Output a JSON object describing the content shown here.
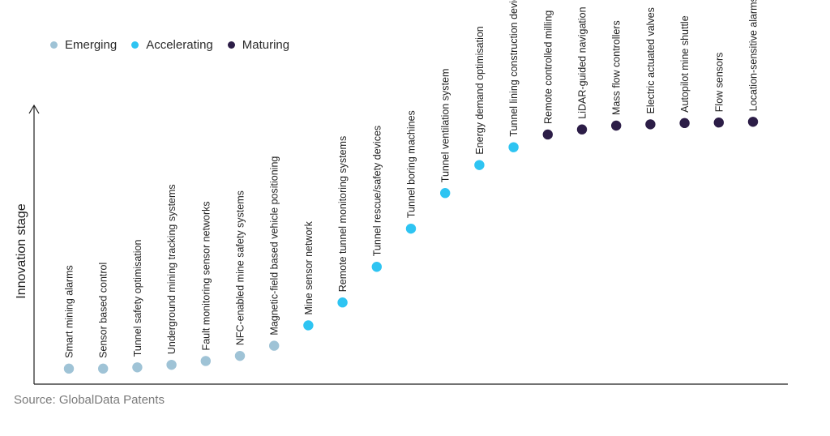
{
  "legend": [
    {
      "label": "Emerging",
      "color": "#9fc3d6"
    },
    {
      "label": "Accelerating",
      "color": "#2ec4f2"
    },
    {
      "label": "Maturing",
      "color": "#2c1d47"
    }
  ],
  "source": "Source: GlobalData Patents",
  "chart_data": {
    "type": "scatter",
    "ylabel": "Innovation stage",
    "ylim": [
      0,
      100
    ],
    "grid": false,
    "legend_position": "top-left",
    "points": [
      {
        "label": "Smart mining alarms",
        "stage": "Emerging",
        "y": 1
      },
      {
        "label": "Sensor based control",
        "stage": "Emerging",
        "y": 1
      },
      {
        "label": "Tunnel safety optimisation",
        "stage": "Emerging",
        "y": 1.5
      },
      {
        "label": "Underground mining tracking systems",
        "stage": "Emerging",
        "y": 2.5
      },
      {
        "label": "Fault monitoring sensor networks",
        "stage": "Emerging",
        "y": 4
      },
      {
        "label": "NFC-enabled mine safety systems",
        "stage": "Emerging",
        "y": 6
      },
      {
        "label": "Magnetic-field based vehicle positioning",
        "stage": "Emerging",
        "y": 10
      },
      {
        "label": "Mine sensor network",
        "stage": "Accelerating",
        "y": 18
      },
      {
        "label": "Remote tunnel monitoring systems",
        "stage": "Accelerating",
        "y": 27
      },
      {
        "label": "Tunnel rescue/safety devices",
        "stage": "Accelerating",
        "y": 41
      },
      {
        "label": "Tunnel boring machines",
        "stage": "Accelerating",
        "y": 56
      },
      {
        "label": "Tunnel ventilation system",
        "stage": "Accelerating",
        "y": 70
      },
      {
        "label": "Energy demand optimisation",
        "stage": "Accelerating",
        "y": 81
      },
      {
        "label": "Tunnel lining construction devices",
        "stage": "Accelerating",
        "y": 88
      },
      {
        "label": "Remote controlled milling",
        "stage": "Maturing",
        "y": 93
      },
      {
        "label": "LiDAR-guided navigation",
        "stage": "Maturing",
        "y": 95
      },
      {
        "label": "Mass flow controllers",
        "stage": "Maturing",
        "y": 96.5
      },
      {
        "label": "Electric actuated valves",
        "stage": "Maturing",
        "y": 97
      },
      {
        "label": "Autopilot mine shuttle",
        "stage": "Maturing",
        "y": 97.5
      },
      {
        "label": "Flow sensors",
        "stage": "Maturing",
        "y": 97.7
      },
      {
        "label": "Location-sensitive alarms",
        "stage": "Maturing",
        "y": 98
      }
    ]
  }
}
